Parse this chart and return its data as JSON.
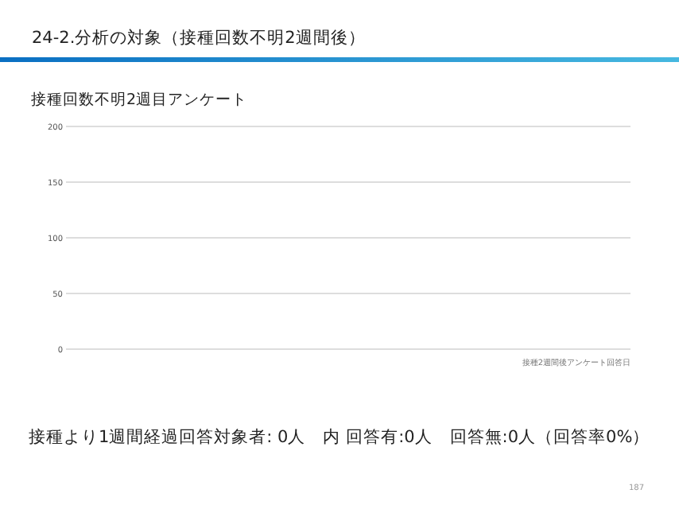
{
  "chart_data": {
    "type": "bar",
    "title": "24-2.分析の対象（接種回数不明2週間後）",
    "subtitle": "接種回数不明2週目アンケート",
    "xlabel": "接種2週間後アンケート回答日",
    "categories": [
      null,
      null,
      null,
      null,
      null,
      null,
      null,
      null,
      null,
      null,
      null,
      null,
      null,
      null,
      null,
      null,
      null,
      null,
      null,
      null,
      null,
      null,
      null,
      null,
      null,
      null,
      null,
      null,
      null,
      null,
      null,
      null,
      null,
      null,
      null,
      null,
      null,
      null,
      null,
      null,
      null,
      null,
      null,
      null,
      null,
      null,
      null,
      null,
      null,
      null,
      null,
      null,
      null,
      null,
      null,
      null,
      null,
      null,
      null,
      null,
      null,
      null,
      null,
      null,
      null,
      null,
      null,
      null,
      null,
      null,
      null,
      null,
      null,
      null,
      null,
      null,
      null,
      null,
      null,
      null,
      null,
      null,
      null,
      null,
      null,
      null,
      null,
      null,
      null,
      null,
      null,
      null,
      null,
      null,
      null,
      null,
      null,
      null,
      null,
      null
    ],
    "values": [
      0,
      0,
      0,
      0,
      0,
      0,
      0,
      0,
      0,
      0,
      0,
      0,
      0,
      0,
      0,
      0,
      0,
      0,
      0,
      0,
      0,
      0,
      0,
      0,
      0,
      0,
      0,
      0,
      0,
      0,
      0,
      0,
      0,
      0,
      0,
      0,
      0,
      0,
      0,
      0,
      0,
      0,
      0,
      0,
      0,
      0,
      0,
      0,
      0,
      0,
      0,
      0,
      0,
      0,
      0,
      0,
      0,
      0,
      0,
      0,
      0,
      0,
      0,
      0,
      0,
      0,
      0,
      0,
      0,
      0,
      0,
      0,
      0,
      0,
      0,
      0,
      0,
      0,
      0,
      0,
      0,
      0,
      0,
      0,
      0,
      0,
      0,
      0,
      0,
      0,
      0,
      0,
      0,
      0,
      0,
      0,
      0,
      0,
      0,
      0
    ],
    "ylim": [
      0,
      200
    ],
    "yticks": [
      0,
      50,
      100,
      150,
      200
    ],
    "grid": "y",
    "annotations": [
      "接種より1週間経過回答対象者: 0人　内 回答有:0人　回答無:0人（回答率0%）",
      "187"
    ]
  }
}
